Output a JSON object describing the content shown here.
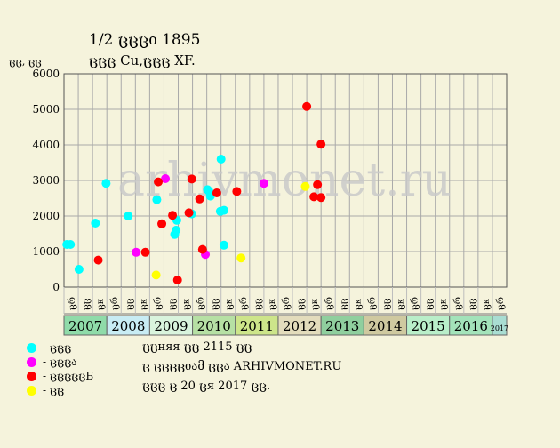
{
  "header": {
    "title": "1/2 ცცცი 1895",
    "subtitle": "ცცც Cu,ცცც XF."
  },
  "watermark": "arhivmonet.ru",
  "legend": [
    {
      "label": "- ცცც",
      "color": "#00ffff"
    },
    {
      "label": "- ცცცა",
      "color": "#ff00ff"
    },
    {
      "label": "- ცცცცცБ",
      "color": "#ff0000"
    },
    {
      "label": "- ცც",
      "color": "#ffff00"
    }
  ],
  "notes": {
    "line1": "ცცняя ცც 2115 ცც",
    "line2": "ც ცცცციამ ცცა ARHIVMONET.RU",
    "line3": "ცცც ც 20 ცя 2017 ცც."
  },
  "chart_data": {
    "type": "scatter",
    "title": "1/2 ცცცი 1895",
    "subtitle": "ცცც Cu,ცცც XF.",
    "ylabel": "ცც, ცც",
    "ylim": [
      0,
      6000
    ],
    "yticks": [
      0,
      1000,
      2000,
      3000,
      4000,
      5000,
      6000
    ],
    "grid": true,
    "legend_position": "bottom-left",
    "x_units": "ცც,ცც,ცც per year 2007–2017",
    "sub_labels": [
      "ცრ",
      "ცც",
      "ცк",
      "ცრ",
      "ცც",
      "ცк",
      "ცრ",
      "ცც",
      "ცк",
      "ცრ",
      "ცც",
      "ცк",
      "ცრ",
      "ცც",
      "ცк",
      "ცრ",
      "ცც",
      "ცк",
      "ცრ",
      "ცც",
      "ცк",
      "ცრ",
      "ცც",
      "ცк",
      "ცრ",
      "ცც",
      "ცк",
      "ცრ",
      "ცც",
      "ცк",
      "ცრ"
    ],
    "years": [
      {
        "label": "2007",
        "color": "#8fdba9"
      },
      {
        "label": "2008",
        "color": "#c8ecf4"
      },
      {
        "label": "2009",
        "color": "#d9f4dd"
      },
      {
        "label": "2010",
        "color": "#b6e0a4"
      },
      {
        "label": "2011",
        "color": "#cde58a"
      },
      {
        "label": "2012",
        "color": "#e3dcbc"
      },
      {
        "label": "2013",
        "color": "#8fcf9e"
      },
      {
        "label": "2014",
        "color": "#cfc9a0"
      },
      {
        "label": "2015",
        "color": "#b9eec9"
      },
      {
        "label": "2016",
        "color": "#a3e3ba"
      },
      {
        "label": "2017",
        "color": "#a9ddd2"
      }
    ],
    "series": [
      {
        "name": "- ცცც",
        "color": "#00ffff",
        "points": [
          {
            "x": 0.2,
            "y": 1200
          },
          {
            "x": 0.45,
            "y": 1200
          },
          {
            "x": 1.05,
            "y": 500
          },
          {
            "x": 2.2,
            "y": 1800
          },
          {
            "x": 2.95,
            "y": 2920
          },
          {
            "x": 4.5,
            "y": 2000
          },
          {
            "x": 6.5,
            "y": 2460
          },
          {
            "x": 7.75,
            "y": 1480
          },
          {
            "x": 7.85,
            "y": 1600
          },
          {
            "x": 7.9,
            "y": 1880
          },
          {
            "x": 8.95,
            "y": 2060
          },
          {
            "x": 10.05,
            "y": 2740
          },
          {
            "x": 10.25,
            "y": 2560
          },
          {
            "x": 10.15,
            "y": 2700
          },
          {
            "x": 11.0,
            "y": 3600
          },
          {
            "x": 10.95,
            "y": 2130
          },
          {
            "x": 11.2,
            "y": 2160
          },
          {
            "x": 11.2,
            "y": 1180
          }
        ]
      },
      {
        "name": "- ცცცა",
        "color": "#ff00ff",
        "points": [
          {
            "x": 5.05,
            "y": 980
          },
          {
            "x": 7.1,
            "y": 3050
          },
          {
            "x": 9.9,
            "y": 920
          },
          {
            "x": 14.0,
            "y": 2920
          }
        ]
      },
      {
        "name": "- ცცცცცБ",
        "color": "#ff0000",
        "points": [
          {
            "x": 2.4,
            "y": 760
          },
          {
            "x": 5.7,
            "y": 980
          },
          {
            "x": 6.6,
            "y": 2960
          },
          {
            "x": 6.85,
            "y": 1780
          },
          {
            "x": 7.6,
            "y": 2020
          },
          {
            "x": 7.95,
            "y": 200
          },
          {
            "x": 8.75,
            "y": 2090
          },
          {
            "x": 8.95,
            "y": 3040
          },
          {
            "x": 9.5,
            "y": 2480
          },
          {
            "x": 9.7,
            "y": 1060
          },
          {
            "x": 10.7,
            "y": 2650
          },
          {
            "x": 12.1,
            "y": 2690
          },
          {
            "x": 17.0,
            "y": 5080
          },
          {
            "x": 17.5,
            "y": 2540
          },
          {
            "x": 17.75,
            "y": 2880
          },
          {
            "x": 18.0,
            "y": 4020
          },
          {
            "x": 18.0,
            "y": 2520
          }
        ]
      },
      {
        "name": "- ცც",
        "color": "#ffff00",
        "points": [
          {
            "x": 6.45,
            "y": 340
          },
          {
            "x": 12.4,
            "y": 820
          },
          {
            "x": 16.9,
            "y": 2830
          }
        ]
      }
    ]
  }
}
